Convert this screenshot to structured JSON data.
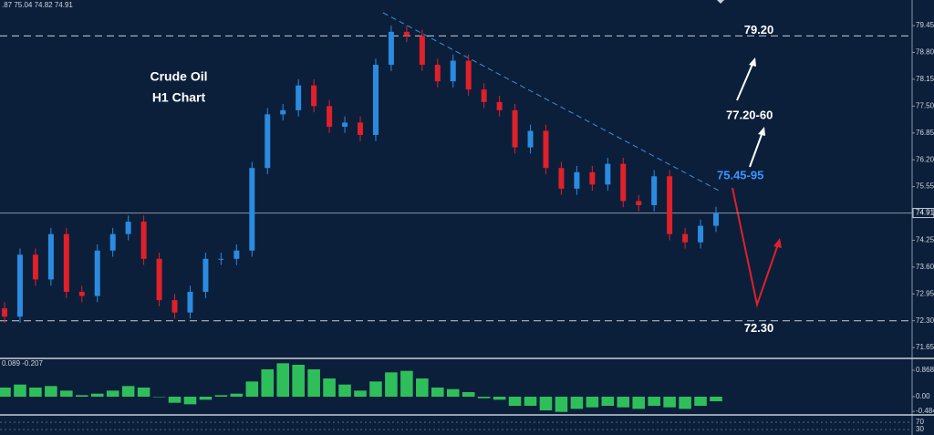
{
  "chart_data": [
    {
      "type": "candlestick",
      "header": ".87 75.04 74.82 74.91",
      "title": "Crude Oil",
      "subtitle": "H1 Chart",
      "annotations": [
        "77.20-60",
        "75.45-95"
      ],
      "levels": [
        {
          "value": 79.2,
          "label": "79.20"
        },
        {
          "value": 72.3,
          "label": "72.30"
        }
      ],
      "last_price": 74.91,
      "up_color": "#2b8be0",
      "down_color": "#e0202a",
      "ylim": [
        71.41,
        80.07
      ],
      "yticks": [
        79.45,
        {
          "value": 78.8,
          "label": "78.80"
        },
        78.15,
        {
          "value": 77.5,
          "label": "77.50"
        },
        76.85,
        {
          "value": 76.2,
          "label": "76.20"
        },
        75.55,
        74.25,
        {
          "value": 73.6,
          "label": "73.60"
        },
        72.95,
        {
          "value": 72.3,
          "label": "72.30"
        },
        71.65
      ],
      "open": [
        72.6,
        72.4,
        73.9,
        73.3,
        74.4,
        73.0,
        72.9,
        74.0,
        74.4,
        74.7,
        73.8,
        72.8,
        72.5,
        73.0,
        73.8,
        73.8,
        74.0,
        76.0,
        77.3,
        77.4,
        78.0,
        77.5,
        77.0,
        77.1,
        76.8,
        78.5,
        79.3,
        79.2,
        78.5,
        78.1,
        78.6,
        77.9,
        77.6,
        77.4,
        76.5,
        76.9,
        76.0,
        75.5,
        75.9,
        75.6,
        76.1,
        75.2,
        75.1,
        75.8,
        74.4,
        74.2,
        74.6
      ],
      "high": [
        72.75,
        74.05,
        74.05,
        74.55,
        74.55,
        73.15,
        74.15,
        74.55,
        74.85,
        74.85,
        73.95,
        72.95,
        73.15,
        73.95,
        73.95,
        74.15,
        76.15,
        77.45,
        77.55,
        78.15,
        78.15,
        77.65,
        77.25,
        77.25,
        78.65,
        79.45,
        79.45,
        79.35,
        78.65,
        78.75,
        78.75,
        78.05,
        77.75,
        77.55,
        77.05,
        77.05,
        76.15,
        76.05,
        76.05,
        76.25,
        76.25,
        75.35,
        75.95,
        75.95,
        74.55,
        74.75,
        75.06
      ],
      "low": [
        72.25,
        72.25,
        73.15,
        73.15,
        72.85,
        72.75,
        72.75,
        73.85,
        74.25,
        73.65,
        72.65,
        72.35,
        72.35,
        72.85,
        73.65,
        73.65,
        73.85,
        75.85,
        77.15,
        77.25,
        77.35,
        76.85,
        76.85,
        76.65,
        76.65,
        78.35,
        79.05,
        78.35,
        77.95,
        77.95,
        77.75,
        77.45,
        77.25,
        76.35,
        76.35,
        75.85,
        75.35,
        75.35,
        75.45,
        75.45,
        75.05,
        74.95,
        74.95,
        74.25,
        74.05,
        74.05,
        74.45
      ],
      "close": [
        72.4,
        73.9,
        73.3,
        74.4,
        73.0,
        72.9,
        74.0,
        74.4,
        74.7,
        73.8,
        72.8,
        72.5,
        73.0,
        73.8,
        73.8,
        74.0,
        76.0,
        77.3,
        77.4,
        78.0,
        77.5,
        77.0,
        77.1,
        76.8,
        78.5,
        79.3,
        79.2,
        78.5,
        78.1,
        78.6,
        77.9,
        77.6,
        77.4,
        76.5,
        76.9,
        76.0,
        75.5,
        75.9,
        75.6,
        76.1,
        75.2,
        75.1,
        75.8,
        74.4,
        74.2,
        74.6,
        74.91
      ]
    },
    {
      "type": "bar",
      "header": "0.089 -0.207",
      "color": "#2fbf5a",
      "ylim": [
        -0.6,
        1.2
      ],
      "yticks": [
        0.868,
        {
          "value": 0,
          "label": "0.00"
        },
        -0.484
      ],
      "values": [
        0.3,
        0.4,
        0.3,
        0.35,
        0.2,
        0.05,
        0.1,
        0.2,
        0.35,
        0.3,
        0.0,
        -0.2,
        -0.25,
        -0.1,
        0.05,
        0.1,
        0.5,
        0.9,
        1.1,
        1.05,
        0.9,
        0.6,
        0.4,
        0.2,
        0.5,
        0.8,
        0.85,
        0.6,
        0.3,
        0.25,
        0.15,
        -0.05,
        -0.1,
        -0.3,
        -0.3,
        -0.45,
        -0.5,
        -0.4,
        -0.35,
        -0.3,
        -0.35,
        -0.4,
        -0.3,
        -0.35,
        -0.4,
        -0.3,
        -0.15
      ]
    },
    {
      "type": "oscillator",
      "ylim": [
        0,
        100
      ],
      "yticks": [
        70,
        30
      ]
    }
  ]
}
